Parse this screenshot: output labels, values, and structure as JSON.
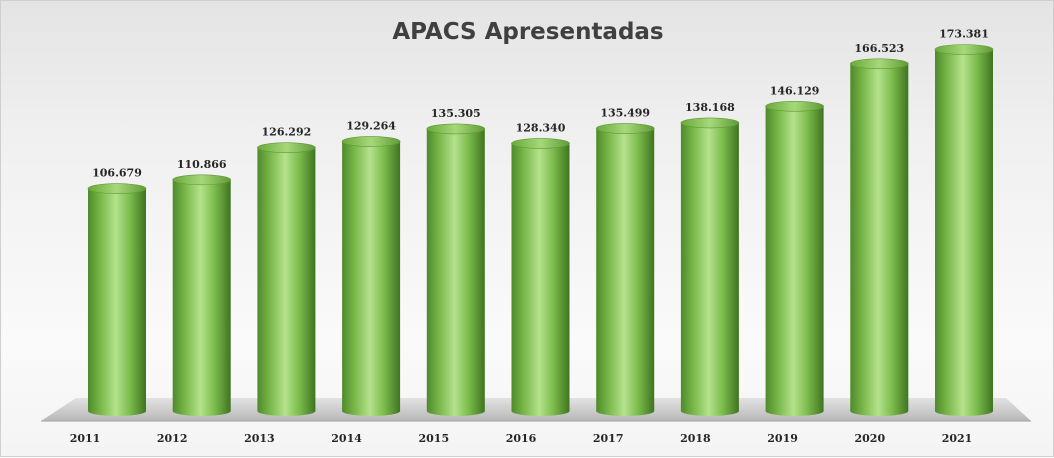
{
  "chart_data": {
    "type": "bar",
    "title": "APACS Apresentadas",
    "categories": [
      "2011",
      "2012",
      "2013",
      "2014",
      "2015",
      "2016",
      "2017",
      "2018",
      "2019",
      "2020",
      "2021"
    ],
    "values": [
      106679,
      110866,
      126292,
      129264,
      135305,
      128340,
      135499,
      138168,
      146129,
      166523,
      173381
    ],
    "value_labels": [
      "106.679",
      "110.866",
      "126.292",
      "129.264",
      "135.305",
      "128.340",
      "135.499",
      "138.168",
      "146.129",
      "166.523",
      "173.381"
    ],
    "xlabel": "",
    "ylabel": "",
    "grid": false,
    "legend": "none",
    "bar_color": "#8cc95a"
  }
}
